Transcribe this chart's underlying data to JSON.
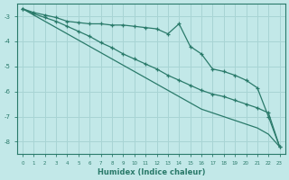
{
  "xlabel": "Humidex (Indice chaleur)",
  "background_color": "#c2e8e8",
  "grid_color": "#a8d4d4",
  "line_color": "#2a7a6a",
  "x_values": [
    0,
    1,
    2,
    3,
    4,
    5,
    6,
    7,
    8,
    9,
    10,
    11,
    12,
    13,
    14,
    15,
    16,
    17,
    18,
    19,
    20,
    21,
    22,
    23
  ],
  "series_zigzag": [
    -2.7,
    -2.85,
    -2.95,
    -3.05,
    -3.2,
    -3.25,
    -3.3,
    -3.3,
    -3.35,
    -3.35,
    -3.4,
    -3.45,
    -3.5,
    -3.7,
    -3.3,
    -4.2,
    -4.5,
    -5.1,
    -5.2,
    -5.35,
    -5.55,
    -5.85,
    -7.0,
    -8.2
  ],
  "series_linear": [
    -2.7,
    -2.95,
    -3.2,
    -3.45,
    -3.7,
    -3.95,
    -4.2,
    -4.45,
    -4.7,
    -4.95,
    -5.2,
    -5.45,
    -5.7,
    -5.95,
    -6.2,
    -6.45,
    -6.7,
    -6.85,
    -7.0,
    -7.15,
    -7.3,
    -7.45,
    -7.7,
    -8.2
  ],
  "series_mid": [
    -2.7,
    -2.9,
    -3.05,
    -3.2,
    -3.4,
    -3.6,
    -3.8,
    -4.05,
    -4.25,
    -4.5,
    -4.7,
    -4.9,
    -5.1,
    -5.35,
    -5.55,
    -5.75,
    -5.95,
    -6.1,
    -6.2,
    -6.35,
    -6.5,
    -6.65,
    -6.85,
    -8.2
  ],
  "ylim": [
    -8.5,
    -2.5
  ],
  "xlim": [
    -0.5,
    23.5
  ],
  "yticks": [
    -8,
    -7,
    -6,
    -5,
    -4,
    -3
  ],
  "xticks": [
    0,
    1,
    2,
    3,
    4,
    5,
    6,
    7,
    8,
    9,
    10,
    11,
    12,
    13,
    14,
    15,
    16,
    17,
    18,
    19,
    20,
    21,
    22,
    23
  ]
}
